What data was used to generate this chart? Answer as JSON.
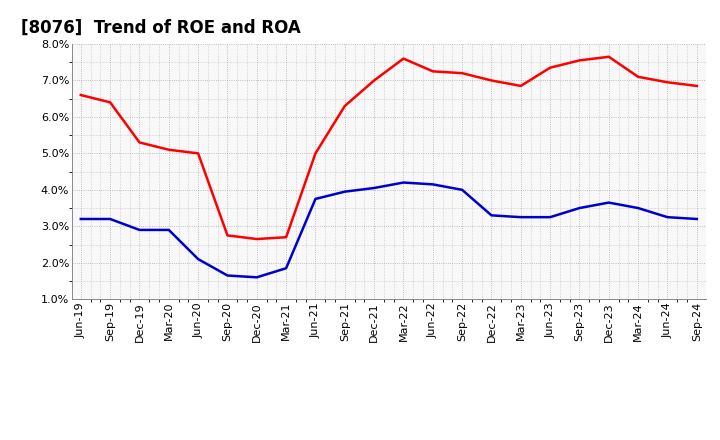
{
  "title": "[8076]  Trend of ROE and ROA",
  "x_labels": [
    "Jun-19",
    "Sep-19",
    "Dec-19",
    "Mar-20",
    "Jun-20",
    "Sep-20",
    "Dec-20",
    "Mar-21",
    "Jun-21",
    "Sep-21",
    "Dec-21",
    "Mar-22",
    "Jun-22",
    "Sep-22",
    "Dec-22",
    "Mar-23",
    "Jun-23",
    "Sep-23",
    "Dec-23",
    "Mar-24",
    "Jun-24",
    "Sep-24"
  ],
  "roe": [
    6.6,
    6.4,
    5.3,
    5.1,
    5.0,
    2.75,
    2.65,
    2.7,
    5.0,
    6.3,
    7.0,
    7.6,
    7.25,
    7.2,
    7.0,
    6.85,
    7.35,
    7.55,
    7.65,
    7.1,
    6.95,
    6.85
  ],
  "roa": [
    3.2,
    3.2,
    2.9,
    2.9,
    2.1,
    1.65,
    1.6,
    1.85,
    3.75,
    3.95,
    4.05,
    4.2,
    4.15,
    4.0,
    3.3,
    3.25,
    3.25,
    3.5,
    3.65,
    3.5,
    3.25,
    3.2
  ],
  "roe_color": "#ff0000",
  "roa_color": "#0000cc",
  "ylim": [
    1.0,
    8.0
  ],
  "yticks": [
    1.0,
    2.0,
    3.0,
    4.0,
    5.0,
    6.0,
    7.0,
    8.0
  ],
  "background_color": "#ffffff",
  "plot_bg_color": "#f8f8f8",
  "grid_color": "#aaaaaa",
  "title_fontsize": 12,
  "axis_fontsize": 8,
  "legend_fontsize": 9,
  "line_width": 1.8
}
